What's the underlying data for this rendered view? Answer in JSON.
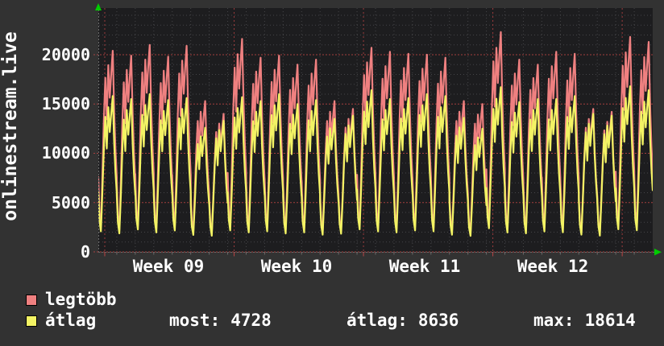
{
  "title": "onlinestream.live",
  "colors": {
    "page_bg": "#323232",
    "plot_bg": "#1d1d1f",
    "grid_minor": "#454548",
    "grid_major": "#bc4444",
    "axis": "#6a6a6a",
    "arrow": "#00cc00",
    "text": "#ffffff",
    "series_legtobb": "#ef8080",
    "series_atlag": "#f3f364",
    "legend_border": "#000000"
  },
  "chart_data": {
    "type": "line",
    "title": "onlinestream.live",
    "x_axis": {
      "labels": [
        "Week 09",
        "Week 10",
        "Week 11",
        "Week 12"
      ],
      "span_days": 30,
      "minor_grid_step": "1 day",
      "major_grid_step": "1 week"
    },
    "y_axis": {
      "ticks": [
        0,
        5000,
        10000,
        15000,
        20000
      ],
      "tick_labels_desc": [
        "20000",
        "15000",
        "10000",
        "5000",
        "0"
      ],
      "minor_step": 1000,
      "max_visible": 24700
    },
    "series": [
      {
        "name": "legtöbb",
        "color": "#ef8080",
        "day_peaks": [
          20400,
          19900,
          21000,
          19800,
          20900,
          15300,
          14000,
          21600,
          19700,
          19900,
          19000,
          19500,
          15300,
          14500,
          20700,
          20300,
          20100,
          20000,
          19700,
          15300,
          15000,
          22300,
          19500,
          19000,
          20300,
          20100,
          14500,
          14200,
          21800,
          21300
        ],
        "day_troughs": [
          2100,
          1900,
          2300,
          2000,
          2200,
          1800,
          1700,
          2200,
          2000,
          2100,
          1900,
          2000,
          1800,
          1900,
          2300,
          2100,
          2000,
          2200,
          2100,
          1800,
          1700,
          2400,
          2000,
          1900,
          2100,
          2000,
          1800,
          1700,
          2300,
          2200
        ]
      },
      {
        "name": "átlag",
        "color": "#f3f364",
        "day_peaks": [
          15800,
          15500,
          16000,
          15400,
          15600,
          12600,
          13300,
          15700,
          15300,
          16000,
          15000,
          15400,
          13500,
          13800,
          16400,
          15500,
          15600,
          16000,
          15800,
          13600,
          12500,
          16700,
          15200,
          15500,
          15500,
          15800,
          14000,
          13800,
          16800,
          16400
        ],
        "trough_offset": -300
      }
    ],
    "day_shape": [
      [
        0,
        0.3
      ],
      [
        0.06,
        0.1
      ],
      [
        0.14,
        0.02
      ],
      [
        0.22,
        0.3
      ],
      [
        0.3,
        0.62
      ],
      [
        0.38,
        0.85
      ],
      [
        0.46,
        0.62
      ],
      [
        0.54,
        0.92
      ],
      [
        0.62,
        0.74
      ],
      [
        0.7,
        0.88
      ],
      [
        0.78,
        1.0
      ],
      [
        0.86,
        0.66
      ],
      [
        0.93,
        0.45
      ],
      [
        1.0,
        0.3
      ]
    ]
  },
  "legend": {
    "items": [
      {
        "label": "legtöbb",
        "color": "#ef8080"
      },
      {
        "label": "átlag",
        "color": "#f3f364"
      }
    ]
  },
  "stats": {
    "items": [
      {
        "label": "most:",
        "value": "4728"
      },
      {
        "label": "átlag:",
        "value": "8636"
      },
      {
        "label": "max:",
        "value": "18614"
      }
    ]
  }
}
